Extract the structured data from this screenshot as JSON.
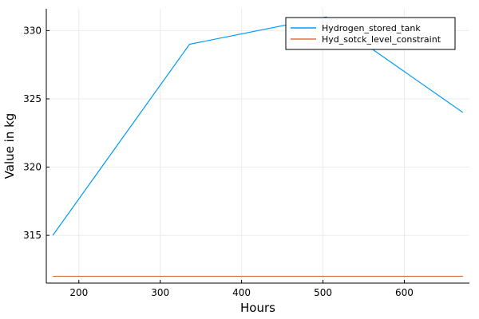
{
  "chart_data": {
    "type": "line",
    "title": "",
    "xlabel": "Hours",
    "ylabel": "Value in kg",
    "xlim": [
      160,
      680
    ],
    "ylim": [
      311.5,
      331.6
    ],
    "x_ticks": [
      200,
      300,
      400,
      500,
      600
    ],
    "y_ticks": [
      315,
      320,
      325,
      330
    ],
    "grid": true,
    "legend_position": "top-right",
    "series": [
      {
        "name": "Hydrogen_stored_tank",
        "color": "#009AFA",
        "x": [
          168,
          336,
          504,
          672
        ],
        "y": [
          315,
          329,
          331,
          324
        ]
      },
      {
        "name": "Hyd_sotck_level_constraint",
        "color": "#E36F47",
        "x": [
          168,
          336,
          504,
          672
        ],
        "y": [
          312,
          312,
          312,
          312
        ]
      }
    ]
  }
}
